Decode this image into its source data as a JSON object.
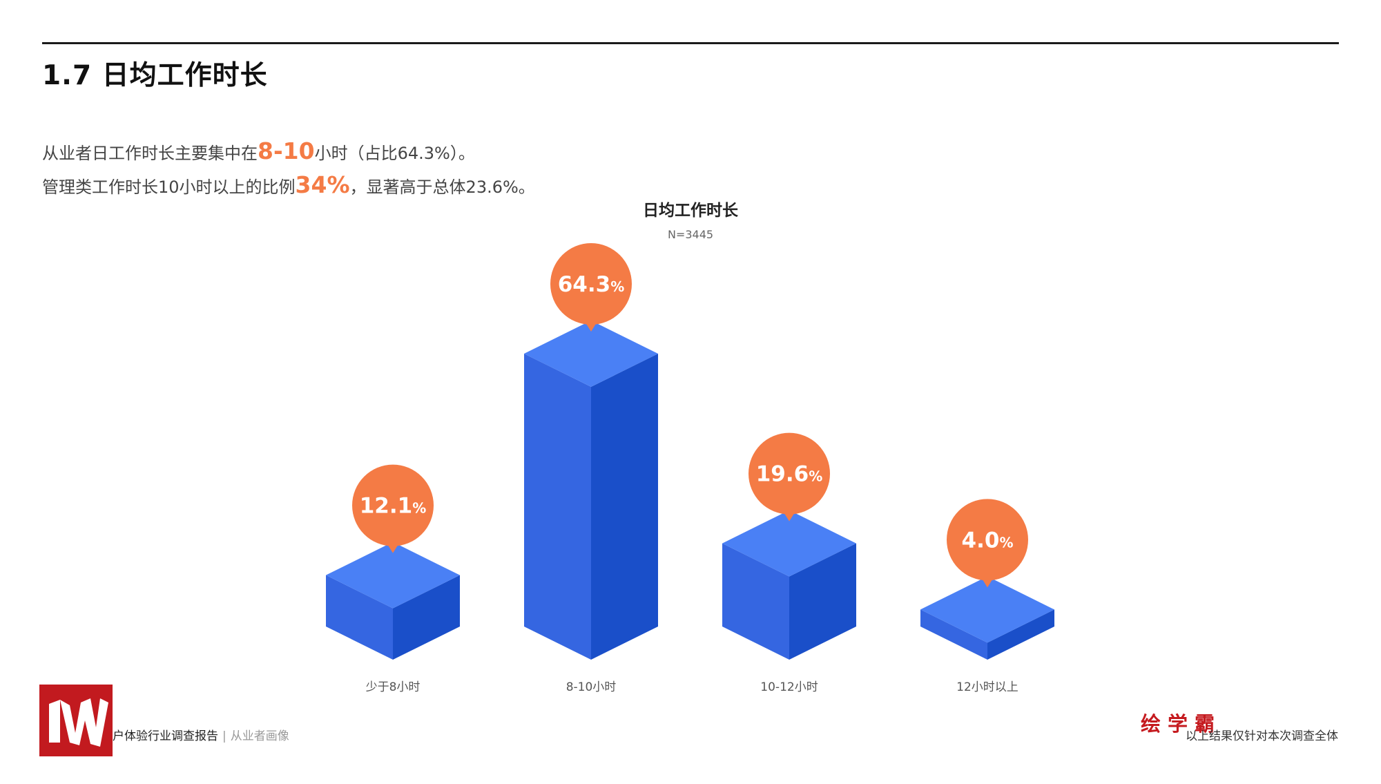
{
  "header": {
    "section_title": "1.7 日均工作时长"
  },
  "summary": {
    "line1": {
      "pre": "从业者日工作时长主要集中在",
      "highlight": "8-10",
      "post": "小时（占比64.3%）。"
    },
    "line2": {
      "pre": "管理类工作时长10小时以上的比例",
      "highlight": "34%",
      "post": "，显著高于总体23.6%。"
    }
  },
  "chart_data": {
    "type": "bar",
    "title": "日均工作时长",
    "subtitle": "N=3445",
    "categories": [
      "少于8小时",
      "8-10小时",
      "10-12小时",
      "12小时以上"
    ],
    "values": [
      12.1,
      64.3,
      19.6,
      4.0
    ],
    "value_labels": [
      "12.1",
      "64.3",
      "19.6",
      "4.0"
    ],
    "value_suffix": "%",
    "ylim": [
      0,
      70
    ],
    "grid": false,
    "colors": {
      "top": "#4a80f5",
      "front": "#3566e1",
      "side": "#1a4fc9",
      "bubble": "#f47b45",
      "bubble_text": "#ffffff"
    }
  },
  "footer": {
    "report_title": "户体验行业调查报告",
    "separator": "|",
    "section": "从业者画像",
    "brand": "绘学霸",
    "note": "以上结果仅针对本次调查全体",
    "colors": {
      "brand": "#c51a1f",
      "logo_bg": "#c21a1f"
    }
  }
}
